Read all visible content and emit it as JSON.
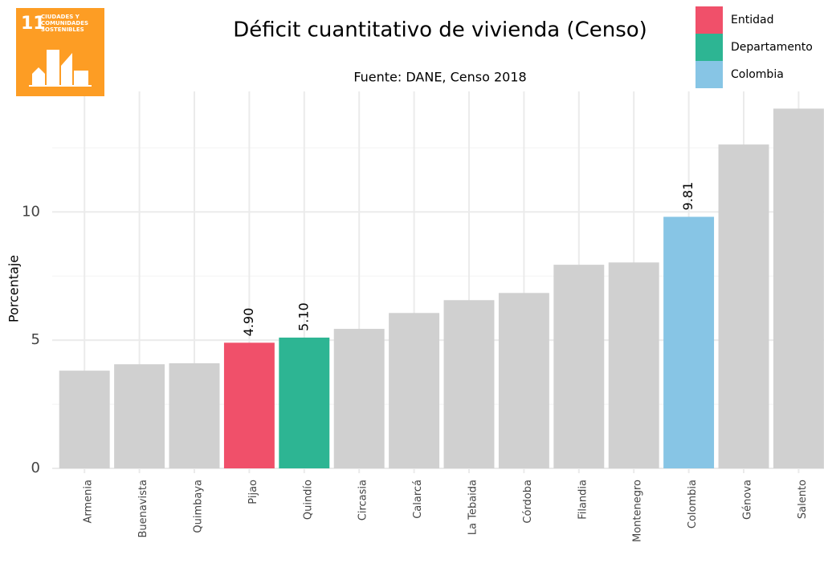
{
  "chart_data": {
    "type": "bar",
    "title": "Déficit cuantitativo de vivienda (Censo)",
    "subtitle": "Fuente: DANE, Censo 2018",
    "ylabel": "Porcentaje",
    "categories": [
      "Armenia",
      "Buenavista",
      "Quimbaya",
      "Pijao",
      "Quindío",
      "Circasia",
      "Calarcá",
      "La Tebaida",
      "Córdoba",
      "Filandia",
      "Montenegro",
      "Colombia",
      "Génova",
      "Salento"
    ],
    "values": [
      3.81,
      4.06,
      4.1,
      4.9,
      5.1,
      5.44,
      6.06,
      6.56,
      6.84,
      7.94,
      8.03,
      9.81,
      12.63,
      14.03
    ],
    "value_labels": [
      null,
      null,
      null,
      "4.90",
      "5.10",
      null,
      null,
      null,
      null,
      null,
      null,
      "9.81",
      null,
      null
    ],
    "colors": [
      "#d0d0d0",
      "#d0d0d0",
      "#d0d0d0",
      "#f0506a",
      "#2db593",
      "#d0d0d0",
      "#d0d0d0",
      "#d0d0d0",
      "#d0d0d0",
      "#d0d0d0",
      "#d0d0d0",
      "#87c5e5",
      "#d0d0d0",
      "#d0d0d0"
    ],
    "legend": [
      {
        "name": "Entidad",
        "color": "#f0506a"
      },
      {
        "name": "Departamento",
        "color": "#2db593"
      },
      {
        "name": "Colombia",
        "color": "#87c5e5"
      }
    ],
    "ylim": [
      0,
      14.7
    ],
    "yticks": [
      0,
      5,
      10
    ],
    "yminorticks": [
      2.5,
      7.5,
      12.5
    ],
    "grid": true,
    "logo": {
      "number": "11",
      "lines": [
        "CIUDADES Y",
        "COMUNIDADES",
        "SOSTENIBLES"
      ],
      "color": "#fd9d24"
    }
  }
}
